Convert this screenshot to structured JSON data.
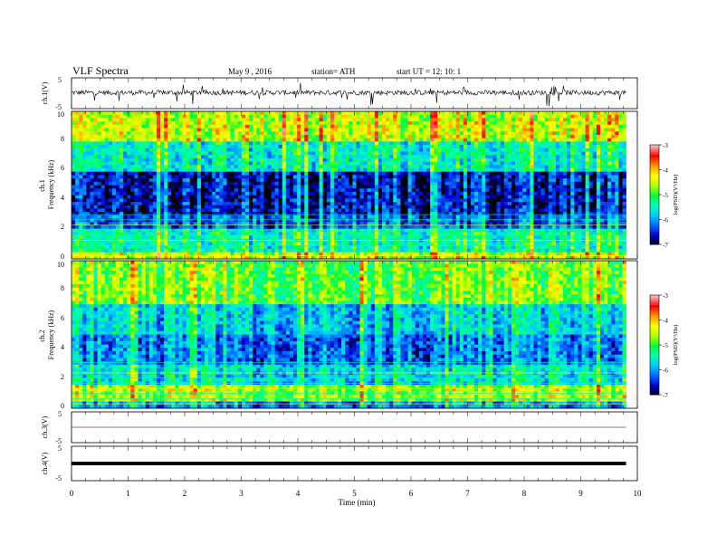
{
  "header": {
    "title": "VLF  Spectra",
    "date": "May 9   , 2016",
    "station": "station= ATH",
    "start": "start  UT  =    12: 10: 1"
  },
  "colors": {
    "ramp": [
      "#000000",
      "#0000c8",
      "#0064ff",
      "#00c8ff",
      "#00ffb4",
      "#00ff3c",
      "#b4ff00",
      "#ffff00",
      "#ff9600",
      "#ff0000",
      "#ffb4b4"
    ],
    "trace": "#000000"
  },
  "chart_data": [
    {
      "type": "line",
      "ylabel": "ch.1(V)",
      "yticks": [
        "5",
        "-5"
      ],
      "ylim": [
        -5,
        5
      ],
      "baseline": 0.2,
      "noise": "dense spiky trace"
    },
    {
      "type": "heatmap",
      "ylabel": "ch.1\nFrequency  (kHz)",
      "yticks": [
        "0",
        "2",
        "4",
        "6",
        "8",
        "10"
      ],
      "ylim": [
        0,
        10
      ],
      "colorbar": {
        "label": "log(PSD)(V²/Hz)",
        "ticks": [
          "-3",
          "-4",
          "-5",
          "-6",
          "-7"
        ],
        "range": [
          -7,
          -3
        ]
      },
      "bands": [
        {
          "from": 0,
          "to": 0.5,
          "level": -4.5
        },
        {
          "from": 0.5,
          "to": 2,
          "level": -5.4
        },
        {
          "from": 2,
          "to": 3,
          "level": -6.2
        },
        {
          "from": 3,
          "to": 6,
          "level": -6.6
        },
        {
          "from": 6,
          "to": 8,
          "level": -5.5
        },
        {
          "from": 8,
          "to": 10,
          "level": -4.5
        }
      ]
    },
    {
      "type": "heatmap",
      "ylabel": "ch.2\nFrequency  (kHz)",
      "yticks": [
        "0",
        "2",
        "4",
        "6",
        "8",
        "10"
      ],
      "ylim": [
        0,
        10
      ],
      "colorbar": {
        "label": "log(PSD)(V²/Hz)",
        "ticks": [
          "-3",
          "-4",
          "-5",
          "-6",
          "-7"
        ],
        "range": [
          -7,
          -3
        ]
      },
      "bands": [
        {
          "from": 0,
          "to": 0.5,
          "level": -6.0
        },
        {
          "from": 0.5,
          "to": 1.5,
          "level": -4.6
        },
        {
          "from": 1.5,
          "to": 3,
          "level": -5.6
        },
        {
          "from": 3,
          "to": 5,
          "level": -6.1
        },
        {
          "from": 5,
          "to": 7,
          "level": -5.7
        },
        {
          "from": 7,
          "to": 10,
          "level": -4.8
        }
      ]
    },
    {
      "type": "line",
      "ylabel": "ch.3(V)",
      "yticks": [
        "5",
        "-5"
      ],
      "ylim": [
        -5,
        5
      ],
      "baseline": 0,
      "noise": "flat"
    },
    {
      "type": "line",
      "ylabel": "ch.4(V)",
      "yticks": [
        "5",
        "-5"
      ],
      "ylim": [
        -5,
        5
      ],
      "baseline": 0,
      "noise": "thick flat"
    }
  ],
  "xaxis": {
    "label": "Time  (min)",
    "ticks": [
      "0",
      "1",
      "2",
      "3",
      "4",
      "5",
      "6",
      "7",
      "8",
      "9",
      "10"
    ],
    "xlim": [
      0,
      10
    ],
    "data_end": 9.8
  }
}
